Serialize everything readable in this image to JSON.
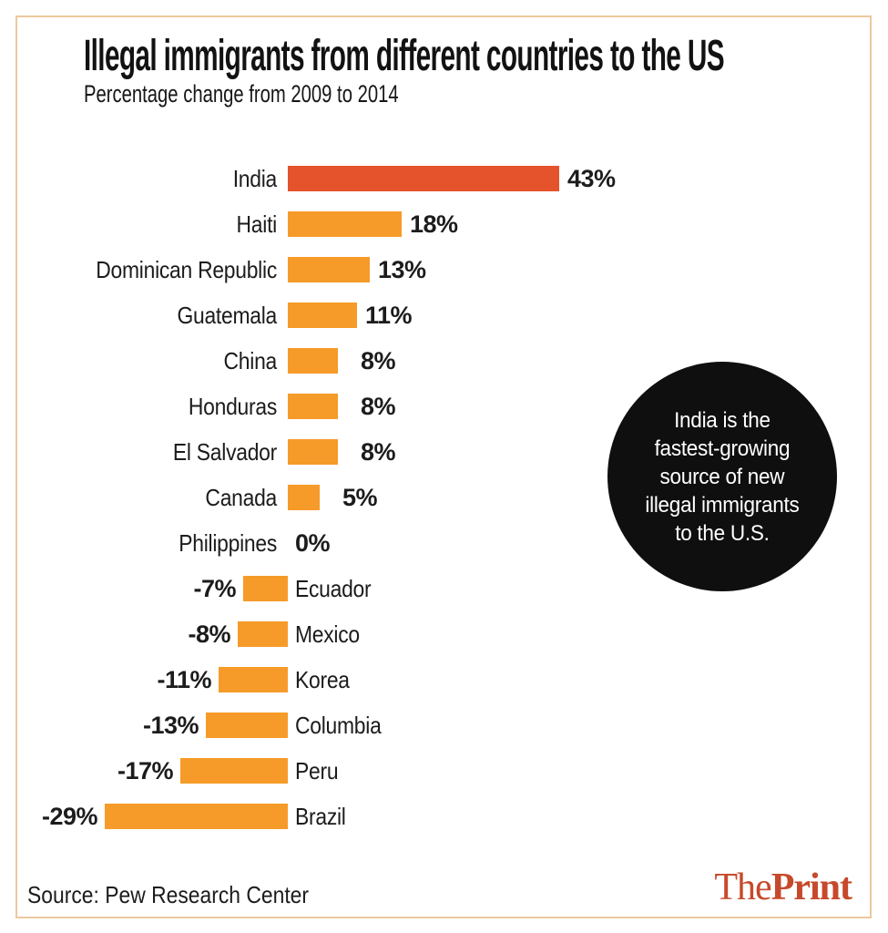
{
  "header": {
    "title": "Illegal immigrants from different countries to the US",
    "subtitle": "Percentage change from 2009 to 2014"
  },
  "annotation": {
    "text": "India is the fastest-growing source of new illegal immigrants to the U.S.",
    "lines": [
      "India is the",
      "fastest-growing",
      "source of new",
      "illegal immigrants",
      "to the U.S."
    ],
    "background_color": "#0f0f0f",
    "text_color": "#ffffff"
  },
  "footer": {
    "source": "Source: Pew Research Center",
    "logo_the": "The",
    "logo_print": "Print",
    "logo_color": "#c7492b"
  },
  "colors": {
    "frame_border": "#ecc99e",
    "text": "#1c1c1c",
    "background": "#ffffff"
  },
  "chart_data": {
    "type": "bar",
    "orientation": "horizontal",
    "title": "Illegal immigrants from different countries to the US",
    "subtitle": "Percentage change from 2009 to 2014",
    "categories": [
      "India",
      "Haiti",
      "Dominican Republic",
      "Guatemala",
      "China",
      "Honduras",
      "El Salvador",
      "Canada",
      "Philippines",
      "Ecuador",
      "Mexico",
      "Korea",
      "Columbia",
      "Peru",
      "Brazil"
    ],
    "values": [
      43,
      18,
      13,
      11,
      8,
      8,
      8,
      5,
      0,
      -7,
      -8,
      -11,
      -13,
      -17,
      -29
    ],
    "value_labels": [
      "43%",
      "18%",
      "13%",
      "11%",
      "8%",
      "8%",
      "8%",
      "5%",
      "0%",
      "-7%",
      "-8%",
      "-11%",
      "-13%",
      "-17%",
      "-29%"
    ],
    "value_suffix": "%",
    "highlight_category": "India",
    "highlight_color": "#e4532b",
    "bar_color": "#f69b29",
    "xlim": [
      -29,
      43
    ],
    "grid": false,
    "legend": "none",
    "source": "Pew Research Center"
  }
}
